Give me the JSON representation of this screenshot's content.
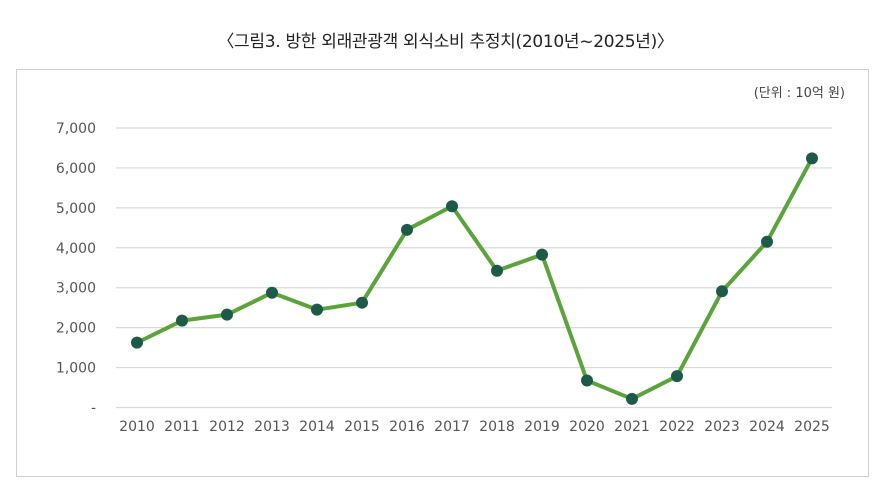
{
  "title": "〈그림3. 방한 외래관광객 외식소비 추정치(2010년~2025년)〉",
  "unit_label": "(단위 : 10억 원)",
  "colors": {
    "line": "#5ba33b",
    "marker": "#1e5a4a",
    "grid": "#d9d9d9",
    "frame": "#cfcfcf"
  },
  "chart_data": {
    "type": "line",
    "title": "〈그림3. 방한 외래관광객 외식소비 추정치(2010년~2025년)〉",
    "xlabel": "",
    "ylabel": "(단위 : 10억 원)",
    "categories": [
      "2010",
      "2011",
      "2012",
      "2013",
      "2014",
      "2015",
      "2016",
      "2017",
      "2018",
      "2019",
      "2020",
      "2021",
      "2022",
      "2023",
      "2024",
      "2025"
    ],
    "series": [
      {
        "name": "방한 외래관광객 외식소비 추정치",
        "values": [
          1625,
          2175,
          2325,
          2875,
          2450,
          2625,
          4450,
          5040,
          3425,
          3830,
          675,
          215,
          785,
          2910,
          4150,
          6240
        ]
      }
    ],
    "ylim": [
      0,
      7000
    ],
    "yticks": [
      0,
      1000,
      2000,
      3000,
      4000,
      5000,
      6000,
      7000
    ],
    "ytick_labels": [
      "-",
      "1,000",
      "2,000",
      "3,000",
      "4,000",
      "5,000",
      "6,000",
      "7,000"
    ],
    "grid": true,
    "legend": "none"
  }
}
